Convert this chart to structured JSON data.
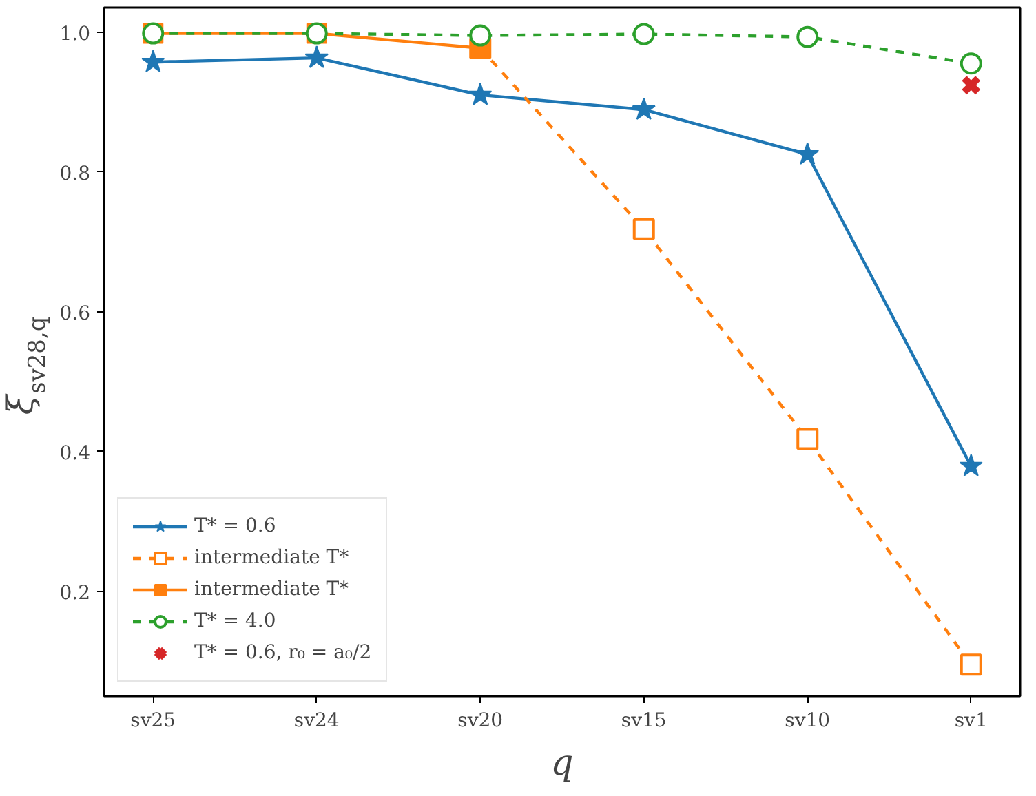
{
  "chart_data": {
    "type": "line",
    "xlabel": "q",
    "ylabel": "ξ$_{sv28,q}$",
    "categories": [
      "sv25",
      "sv24",
      "sv20",
      "sv15",
      "sv10",
      "sv1"
    ],
    "ylim": [
      0.05,
      1.035
    ],
    "yticks": [
      {
        "value": 0.2,
        "label": "0.2"
      },
      {
        "value": 0.4,
        "label": "0.4"
      },
      {
        "value": 0.6,
        "label": "0.6"
      },
      {
        "value": 0.8,
        "label": "0.8"
      },
      {
        "value": 1,
        "label": "1.0"
      }
    ],
    "grid": false,
    "legend": "bottom left",
    "series": [
      {
        "name": "T* = 0.6",
        "color": "#1f77b4",
        "marker": "star",
        "line_style": "solid",
        "values": [
          0.957,
          0.963,
          0.91,
          0.889,
          0.825,
          0.379
        ]
      },
      {
        "name": "intermediate T*",
        "color": "#ff7f0e",
        "marker": "square",
        "line_style": "dashed",
        "values": [
          null,
          null,
          0.977,
          0.718,
          0.418,
          0.095
        ]
      },
      {
        "name": "intermediate T*",
        "color": "#ff7f0e",
        "marker": "square",
        "line_style": "solid",
        "values": [
          0.998,
          0.998,
          0.977,
          null,
          null,
          null
        ]
      },
      {
        "name": "T* = 4.0",
        "color": "#2ca02c",
        "marker": "circle",
        "line_style": "dashed",
        "values": [
          0.998,
          0.998,
          0.995,
          0.997,
          0.993,
          0.955
        ]
      },
      {
        "name": "T* = 0.6, r₀ = a₀/2",
        "color": "#d62728",
        "marker": "cross",
        "type": "scatter",
        "values": [
          null,
          null,
          null,
          null,
          null,
          0.924
        ]
      }
    ]
  }
}
